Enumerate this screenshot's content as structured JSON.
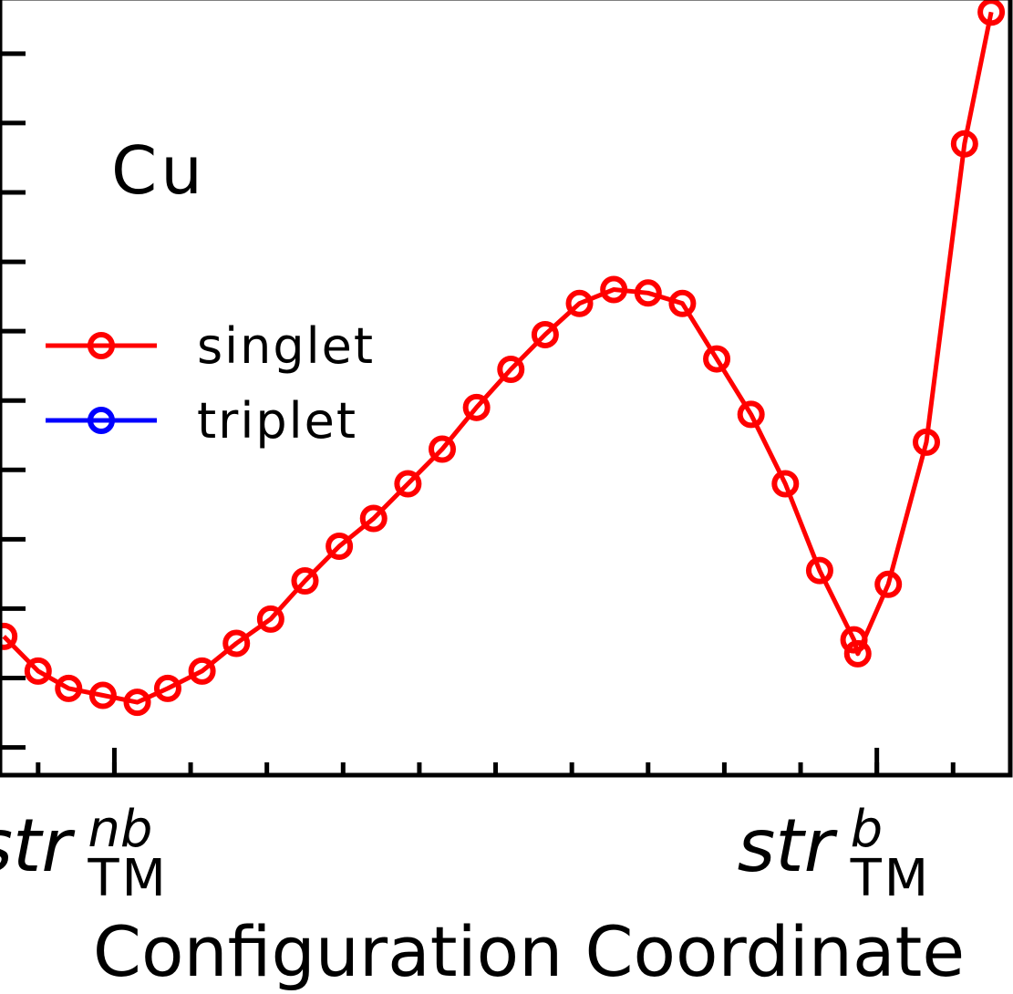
{
  "chart_data": {
    "type": "line",
    "title": "",
    "annotation": "Cu",
    "xlabel": "Configuration Coordinate",
    "ylabel": "",
    "x_tick_labels": [
      {
        "x": 2.4,
        "base": "str",
        "sup": "nb",
        "sub": "TM"
      },
      {
        "x": 22.4,
        "base": "str",
        "sup": "b",
        "sub": "TM"
      }
    ],
    "xlim": [
      0,
      26.5
    ],
    "ylim": [
      -0.4,
      10.8
    ],
    "y_tick_values": [
      0,
      1,
      2,
      3,
      4,
      5,
      6,
      7,
      8,
      9,
      10
    ],
    "x_tick_values": [
      1,
      3,
      5,
      7,
      9,
      11,
      13,
      15,
      17,
      19,
      21,
      23,
      25
    ],
    "x_major_ticks": [
      3,
      23
    ],
    "legend": {
      "position": "center-left",
      "entries": [
        "singlet",
        "triplet"
      ]
    },
    "series": [
      {
        "name": "singlet",
        "color": "#ff0000",
        "marker": "open-circle",
        "x": [
          0.1,
          1.0,
          1.8,
          2.7,
          3.6,
          4.4,
          5.3,
          6.2,
          7.1,
          8.0,
          8.9,
          9.8,
          10.7,
          11.6,
          12.5,
          13.4,
          14.3,
          15.2,
          16.1,
          17.0,
          17.9,
          18.8,
          19.7,
          20.6,
          21.5,
          22.4,
          22.5,
          23.3,
          24.3,
          25.3,
          26.0
        ],
        "y": [
          1.6,
          1.1,
          0.85,
          0.75,
          0.65,
          0.85,
          1.1,
          1.5,
          1.85,
          2.4,
          2.9,
          3.3,
          3.8,
          4.3,
          4.9,
          5.45,
          5.95,
          6.4,
          6.6,
          6.55,
          6.4,
          5.6,
          4.8,
          3.8,
          2.55,
          1.55,
          1.35,
          2.35,
          4.4,
          8.7,
          10.6
        ]
      },
      {
        "name": "triplet",
        "color": "#0000ff",
        "marker": "open-circle",
        "x": [],
        "y": []
      }
    ]
  }
}
